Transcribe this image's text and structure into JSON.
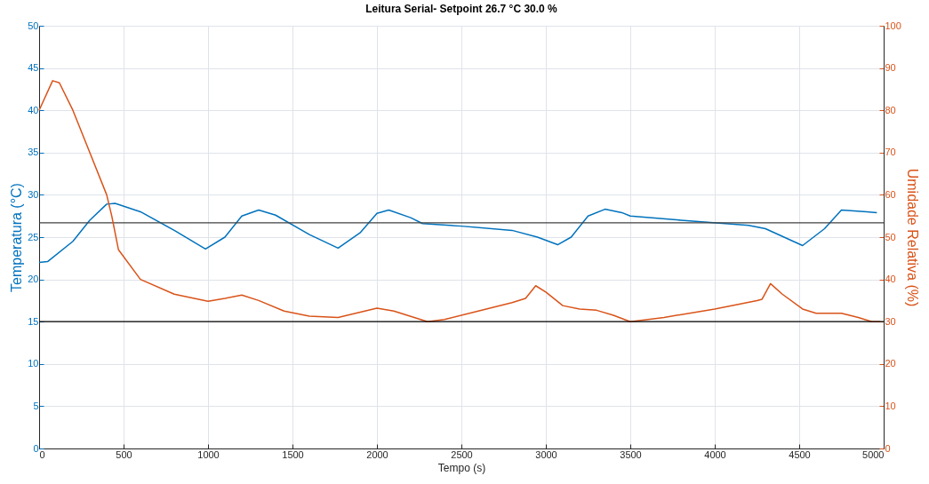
{
  "chart_data": {
    "type": "line",
    "title": "Leitura Serial- Setpoint 26.7 °C 30.0 %",
    "xlabel": "Tempo (s)",
    "ylabel": "Temperatura (°C)",
    "y2label": "Umidade Relativa (%)",
    "xlim": [
      0,
      5000
    ],
    "xticks": [
      0,
      500,
      1000,
      1500,
      2000,
      2500,
      3000,
      3500,
      4000,
      4500,
      5000
    ],
    "ylim": [
      0,
      50
    ],
    "yticks": [
      0,
      5,
      10,
      15,
      20,
      25,
      30,
      35,
      40,
      45,
      50
    ],
    "y2lim": [
      0,
      100
    ],
    "y2ticks": [
      0,
      10,
      20,
      30,
      40,
      50,
      60,
      70,
      80,
      90,
      100
    ],
    "grid": true,
    "series": [
      {
        "color": "#0072bd",
        "x": [
          0,
          50,
          200,
          300,
          400,
          450,
          600,
          800,
          985,
          1100,
          1200,
          1300,
          1400,
          1600,
          1770,
          1900,
          2000,
          2070,
          2200,
          2270,
          2500,
          2800,
          2950,
          3070,
          3150,
          3250,
          3350,
          3450,
          3500,
          3800,
          4200,
          4300,
          4520,
          4650,
          4750,
          4900,
          4960
        ],
        "values": [
          22.0,
          22.1,
          24.5,
          27,
          28.9,
          29,
          28,
          25.8,
          23.6,
          25,
          27.5,
          28.2,
          27.6,
          25.3,
          23.7,
          25.5,
          27.8,
          28.2,
          27.3,
          26.6,
          26.3,
          25.8,
          25,
          24.1,
          25,
          27.5,
          28.3,
          27.9,
          27.5,
          27,
          26.4,
          26,
          24,
          26,
          28.2,
          28,
          27.9
        ]
      },
      {
        "color": "#d95319",
        "axis": "y2",
        "x": [
          0,
          80,
          120,
          200,
          300,
          400,
          430,
          470,
          600,
          800,
          1000,
          1100,
          1200,
          1300,
          1450,
          1600,
          1770,
          2000,
          2100,
          2300,
          2400,
          2600,
          2800,
          2880,
          2940,
          3000,
          3100,
          3200,
          3300,
          3400,
          3500,
          3700,
          4000,
          4250,
          4280,
          4330,
          4400,
          4520,
          4600,
          4750,
          4850,
          4930,
          4980
        ],
        "values": [
          80,
          87,
          86.5,
          80,
          70,
          60,
          55,
          47,
          40,
          36.5,
          34.8,
          35.5,
          36.3,
          35,
          32.5,
          31.3,
          31,
          33.2,
          32.5,
          30,
          30.5,
          32.5,
          34.5,
          35.5,
          38.5,
          37,
          33.8,
          33,
          32.7,
          31.5,
          30,
          31,
          33,
          35,
          35.3,
          39,
          36.5,
          33,
          32,
          32,
          31,
          30,
          30
        ]
      }
    ],
    "ref_lines": [
      {
        "axis": "y",
        "value": 26.7,
        "color": "#404040"
      },
      {
        "axis": "y2",
        "value": 30,
        "color": "#000000"
      }
    ]
  }
}
